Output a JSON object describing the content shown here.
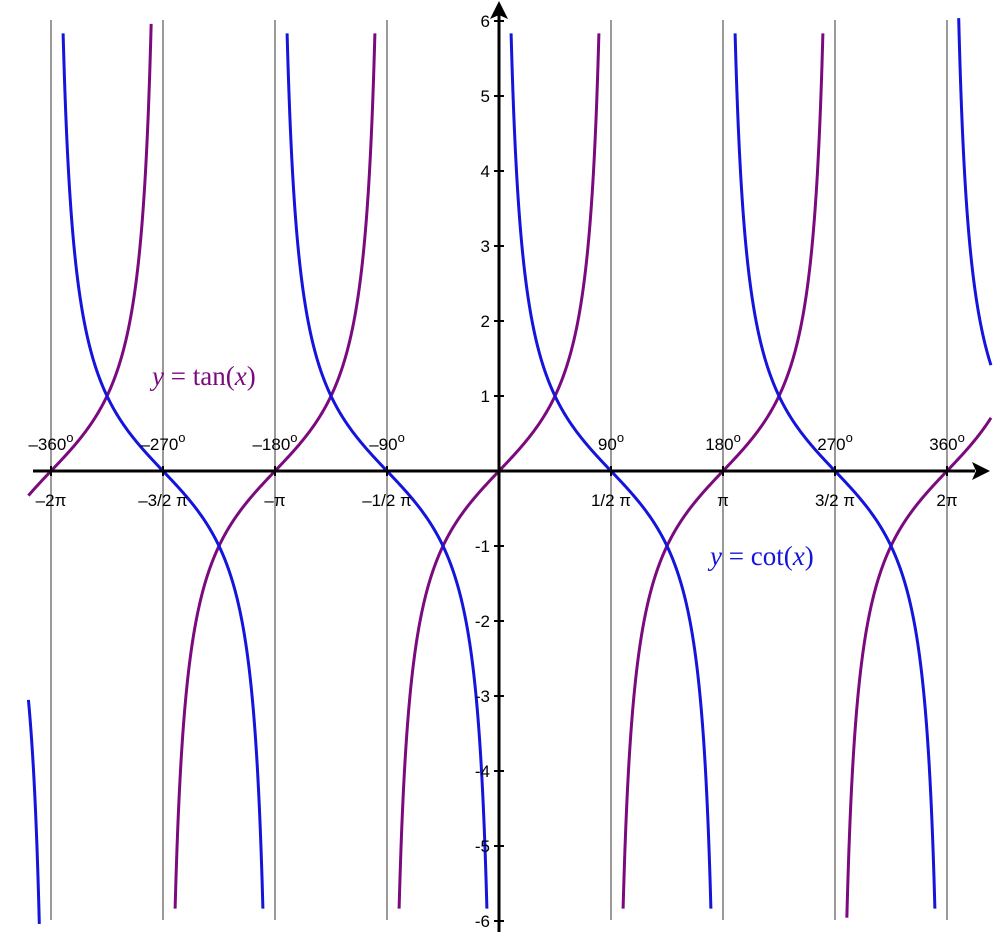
{
  "chart_data": {
    "type": "line",
    "xlim": [
      -6.6,
      6.9
    ],
    "ylim": [
      -6,
      6
    ],
    "grid": "vertical lines at multiples of pi/2",
    "x_tick_values": [
      -6.2832,
      -4.7124,
      -3.1416,
      -1.5708,
      1.5708,
      3.1416,
      4.7124,
      6.2832
    ],
    "x_tick_labels": [
      "–2π",
      "–3/2 π",
      "–π",
      "–1/2 π",
      "1/2 π",
      "π",
      "3/2 π",
      "2π"
    ],
    "degree_labels": [
      "–360",
      "–270",
      "–180",
      "–90",
      "90",
      "180",
      "270",
      "360"
    ],
    "degree_sup": "o",
    "y_ticks": [
      -6,
      -5,
      -4,
      -3,
      -2,
      -1,
      1,
      2,
      3,
      4,
      5,
      6
    ],
    "y_tick_labels": [
      "-6",
      "-5",
      "-4",
      "-3",
      "-2",
      "-1",
      "1",
      "2",
      "3",
      "4",
      "5",
      "6"
    ],
    "series": [
      {
        "name": "y = tan(x)",
        "function": "tan",
        "color": "#7b0a7f"
      },
      {
        "name": "y = cot(x)",
        "function": "cot",
        "color": "#1414dc"
      }
    ],
    "annotations": [
      {
        "series": "tan",
        "label_y": "y",
        "label_eq": " = tan(",
        "label_x": "x",
        "label_close": ")",
        "color": "#7b0a7f"
      },
      {
        "series": "cot",
        "label_y": "y",
        "label_eq": " = cot(",
        "label_x": "x",
        "label_close": ")",
        "color": "#1414dc"
      }
    ]
  }
}
